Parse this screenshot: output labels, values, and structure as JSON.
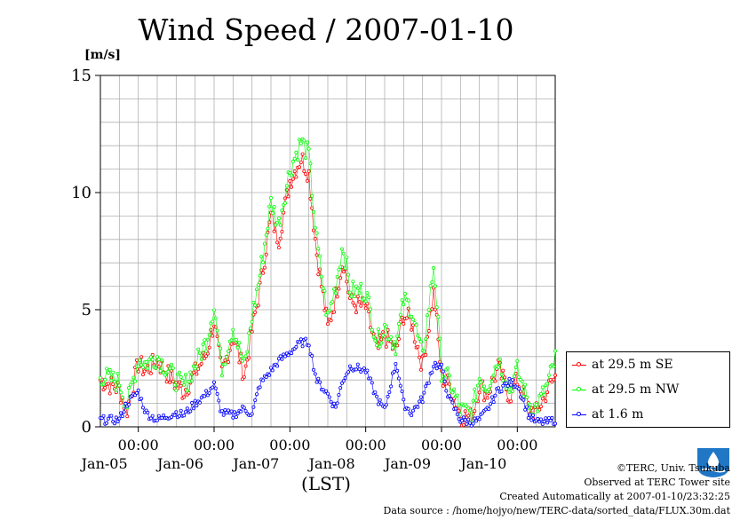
{
  "title": "Wind Speed / 2007-01-10",
  "colors": {
    "se": "#ff0000",
    "nw": "#00ff00",
    "low": "#0000ff",
    "grid": "#b0b0b0",
    "logo": "#1f77c6"
  },
  "legend": [
    {
      "label": "at 29.5 m SE",
      "color": "#ff0000"
    },
    {
      "label": "at 29.5 m NW",
      "color": "#00ff00"
    },
    {
      "label": "at 1.6 m",
      "color": "#0000ff"
    }
  ],
  "credits": {
    "line1": "©TERC, Univ. Tsukuba",
    "line2": "Observed at TERC Tower site",
    "line3": "Created Automatically at 2007-01-10/23:32:25",
    "line4": "Data source : /home/hojyo/new/TERC-data/sorted_data/FLUX.30m.dat"
  },
  "chart_data": {
    "type": "line",
    "title": "Wind Speed / 2007-01-10",
    "ylabel": "[m/s]",
    "xlabel": "(LST)",
    "ylim": [
      0,
      15
    ],
    "yticks": [
      0,
      5,
      10,
      15
    ],
    "xlim": [
      0,
      6
    ],
    "x_unit": "days from 2007-01-04 12:00 LST",
    "xtick_labels": [
      {
        "time": "00:00",
        "day": "Jan-05"
      },
      {
        "time": "00:00",
        "day": "Jan-06"
      },
      {
        "time": "00:00",
        "day": "Jan-07"
      },
      {
        "time": "00:00",
        "day": "Jan-08"
      },
      {
        "time": "00:00",
        "day": "Jan-09"
      },
      {
        "time": "00:00",
        "day": "Jan-10"
      }
    ],
    "grid": true,
    "legend_position": "right",
    "series": [
      {
        "name": "at 29.5 m SE",
        "color": "#ff0000",
        "x": [
          0,
          0.25,
          0.35,
          0.5,
          0.6,
          0.75,
          1.0,
          1.1,
          1.25,
          1.4,
          1.5,
          1.6,
          1.75,
          1.9,
          2.0,
          2.1,
          2.25,
          2.35,
          2.5,
          2.65,
          2.75,
          2.85,
          3.0,
          3.1,
          3.2,
          3.3,
          3.5,
          3.65,
          3.75,
          3.9,
          4.0,
          4.1,
          4.25,
          4.4,
          4.5,
          4.6,
          4.75,
          4.9,
          5.0,
          5.1,
          5.25,
          5.4,
          5.5,
          5.65,
          5.75,
          5.9,
          6.0
        ],
        "y": [
          2.0,
          1.6,
          0.7,
          2.7,
          2.4,
          2.8,
          1.8,
          1.5,
          2.3,
          3.1,
          4.5,
          2.2,
          3.9,
          2.2,
          4.1,
          5.8,
          9.0,
          8.0,
          10.5,
          11.5,
          10.8,
          7.5,
          4.2,
          5.5,
          7.2,
          5.3,
          5.1,
          3.2,
          3.9,
          3.2,
          4.8,
          4.5,
          2.6,
          5.8,
          2.1,
          1.8,
          0.5,
          0.4,
          1.8,
          1.4,
          2.5,
          1.3,
          2.0,
          0.8,
          0.6,
          1.6,
          2.1
        ]
      },
      {
        "name": "at 29.5 m NW",
        "color": "#00ff00",
        "x": [
          0,
          0.25,
          0.35,
          0.5,
          0.6,
          0.75,
          1.0,
          1.1,
          1.25,
          1.4,
          1.5,
          1.6,
          1.75,
          1.9,
          2.0,
          2.1,
          2.25,
          2.35,
          2.5,
          2.65,
          2.75,
          2.85,
          3.0,
          3.1,
          3.2,
          3.3,
          3.5,
          3.65,
          3.75,
          3.9,
          4.0,
          4.1,
          4.25,
          4.4,
          4.5,
          4.6,
          4.75,
          4.9,
          5.0,
          5.1,
          5.25,
          5.4,
          5.5,
          5.65,
          5.75,
          5.9,
          6.0
        ],
        "y": [
          2.2,
          1.9,
          0.9,
          2.9,
          2.7,
          3.0,
          2.0,
          1.7,
          2.6,
          3.7,
          5.2,
          2.5,
          4.3,
          2.5,
          4.7,
          6.4,
          9.6,
          8.6,
          11.0,
          12.2,
          11.6,
          8.0,
          4.6,
          6.0,
          7.8,
          5.8,
          5.8,
          3.6,
          4.3,
          3.5,
          5.4,
          5.1,
          2.9,
          7.0,
          2.4,
          2.0,
          0.7,
          0.6,
          2.1,
          1.7,
          2.9,
          1.6,
          2.4,
          1.0,
          0.8,
          1.8,
          2.9
        ]
      },
      {
        "name": "at 1.6 m",
        "color": "#0000ff",
        "x": [
          0,
          0.25,
          0.35,
          0.5,
          0.6,
          0.75,
          1.0,
          1.1,
          1.25,
          1.4,
          1.5,
          1.6,
          1.75,
          1.9,
          2.0,
          2.1,
          2.25,
          2.35,
          2.5,
          2.65,
          2.75,
          2.85,
          3.0,
          3.1,
          3.2,
          3.3,
          3.5,
          3.65,
          3.75,
          3.9,
          4.0,
          4.1,
          4.25,
          4.4,
          4.5,
          4.6,
          4.75,
          4.9,
          5.0,
          5.1,
          5.25,
          5.4,
          5.5,
          5.65,
          5.75,
          5.9,
          6.0
        ],
        "y": [
          0.3,
          0.3,
          1.0,
          1.5,
          0.6,
          0.3,
          0.6,
          0.5,
          1.0,
          1.4,
          1.8,
          0.6,
          0.5,
          0.8,
          0.5,
          1.8,
          2.4,
          2.8,
          3.2,
          3.6,
          3.6,
          2.0,
          1.4,
          0.8,
          2.0,
          2.6,
          2.4,
          1.2,
          0.7,
          2.8,
          1.0,
          0.6,
          1.2,
          2.7,
          2.5,
          1.2,
          0.3,
          0.2,
          0.3,
          0.7,
          1.6,
          1.9,
          1.8,
          0.5,
          0.2,
          0.2,
          0.3
        ]
      }
    ]
  }
}
